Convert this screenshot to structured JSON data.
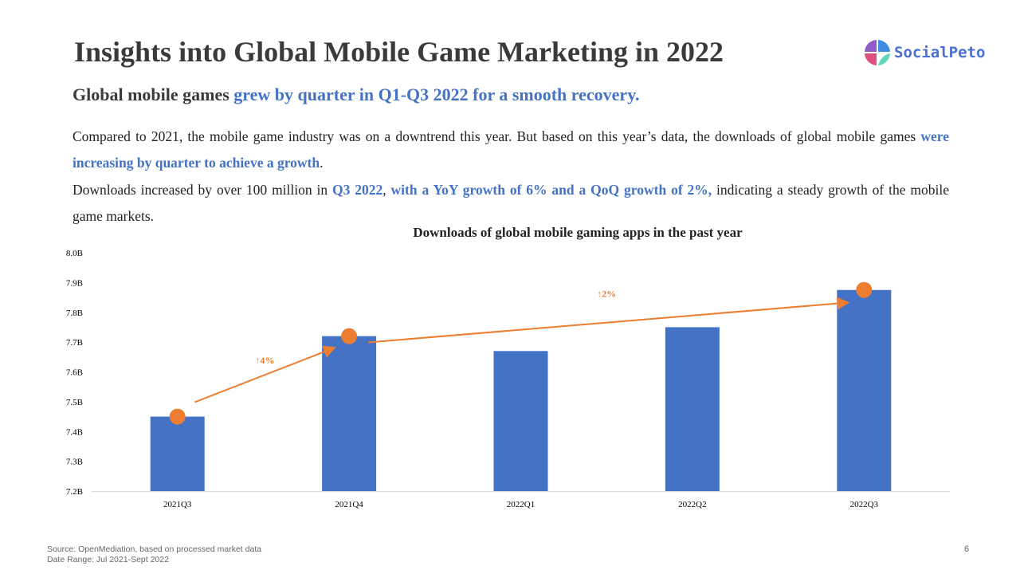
{
  "header": {
    "title": "Insights into Global Mobile Game Marketing in 2022",
    "subtitle_plain": "Global mobile games ",
    "subtitle_highlight": "grew by quarter in Q1-Q3 2022 for a smooth recovery.",
    "logo_text": "SocialPeto"
  },
  "body": {
    "p1_a": "Compared to 2021, the mobile game industry was on a downtrend this year. But based on this year’s data, the downloads of global mobile games ",
    "p1_b": "were increasing by quarter to achieve a growth",
    "p1_c": ".",
    "p2_a": "Downloads increased by over 100 million in ",
    "p2_b": "Q3 2022",
    "p2_c": ", ",
    "p2_d": "with a YoY growth of 6% and a QoQ growth of 2%,",
    "p2_e": " indicating a steady growth of the mobile game markets."
  },
  "footer": {
    "source": "Source: OpenMediation, based on processed market data",
    "date_range": "Date Range: Jul 2021-Sept 2022",
    "page": "6"
  },
  "colors": {
    "bar": "#4472c4",
    "accent": "#ed7d31",
    "highlight": "#4472c4"
  },
  "chart_data": {
    "type": "bar",
    "title": "Downloads of global mobile gaming apps in the past year",
    "categories": [
      "2021Q3",
      "2021Q4",
      "2022Q1",
      "2022Q2",
      "2022Q3"
    ],
    "values": [
      7.45,
      7.72,
      7.67,
      7.75,
      7.875
    ],
    "unit": "B",
    "ylim": [
      7.2,
      8.0
    ],
    "yticks": [
      "7.2B",
      "7.3B",
      "7.4B",
      "7.5B",
      "7.6B",
      "7.7B",
      "7.8B",
      "7.9B",
      "8.0B"
    ],
    "grid": false,
    "annotations": [
      {
        "from": "2021Q3",
        "to": "2021Q4",
        "label": "↑4%"
      },
      {
        "from": "2021Q4",
        "to": "2022Q3",
        "label": "↑2%"
      }
    ],
    "markers": [
      "2021Q3",
      "2021Q4",
      "2022Q3"
    ]
  }
}
